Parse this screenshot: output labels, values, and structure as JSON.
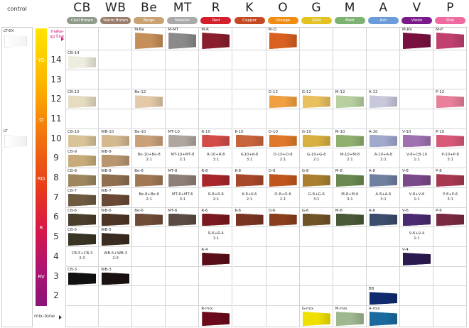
{
  "control": {
    "title": "control",
    "swatches": [
      {
        "label": "LT-EX",
        "color": "#f3f3f3"
      },
      {
        "label": "LT",
        "color": "#efefef"
      }
    ]
  },
  "level_bar": {
    "labels": [
      "YO",
      "O",
      "RO",
      "R",
      "RV"
    ]
  },
  "columns": [
    {
      "code": "CB",
      "name": "Cool Brown",
      "color": "#8f9c8c"
    },
    {
      "code": "WB",
      "name": "Warm Brown",
      "color": "#9b7d6c"
    },
    {
      "code": "Be",
      "name": "Beige",
      "color": "#c9a273"
    },
    {
      "code": "MT",
      "name": "Metallic",
      "color": "#a9a9a9"
    },
    {
      "code": "R",
      "name": "Red",
      "color": "#d3202c"
    },
    {
      "code": "K",
      "name": "Copper",
      "color": "#c34a22"
    },
    {
      "code": "O",
      "name": "Orange",
      "color": "#f08c12"
    },
    {
      "code": "G",
      "name": "Gold",
      "color": "#e3c322"
    },
    {
      "code": "M",
      "name": "Matt",
      "color": "#7cb272"
    },
    {
      "code": "A",
      "name": "Ash",
      "color": "#6b9bd8"
    },
    {
      "code": "V",
      "name": "Violet",
      "color": "#7a1a8a"
    },
    {
      "code": "P",
      "name": "Pink",
      "color": "#f06aa0"
    }
  ],
  "rows": [
    {
      "label": "make-up line",
      "cells": [
        null,
        null,
        {
          "label": "M-Be",
          "color": "#c68f5a"
        },
        {
          "label": "M-MT",
          "color": "#8a8a8a"
        },
        {
          "label": "M-R",
          "color": "#8a1e2e"
        },
        null,
        {
          "label": "M-O",
          "color": "#d86020"
        },
        null,
        null,
        null,
        {
          "label": "M-RV",
          "color": "#7a1040"
        },
        {
          "label": "M-P",
          "color": "#c04070"
        }
      ]
    },
    {
      "label": 14,
      "cells": [
        {
          "label": "CB-14",
          "color": "#eeeddf"
        },
        null,
        null,
        null,
        null,
        null,
        null,
        null,
        null,
        null,
        null,
        null
      ]
    },
    {
      "label": 13,
      "cells": [
        null,
        null,
        null,
        null,
        null,
        null,
        null,
        null,
        null,
        null,
        null,
        null
      ]
    },
    {
      "label": 12,
      "cells": [
        {
          "label": "CB-12",
          "color": "#e6ddc0"
        },
        null,
        {
          "label": "Be-12",
          "color": "#e3c9a8"
        },
        null,
        null,
        null,
        {
          "label": "O-12",
          "color": "#f0a040"
        },
        {
          "label": "G-12",
          "color": "#e8c060"
        },
        {
          "label": "M-12",
          "color": "#b8d0a0"
        },
        {
          "label": "A-12",
          "color": "#c8c8dc"
        },
        null,
        {
          "label": "P-12",
          "color": "#e8809a"
        }
      ]
    },
    {
      "label": 11,
      "cells": [
        null,
        null,
        null,
        null,
        null,
        null,
        null,
        null,
        null,
        null,
        null,
        null
      ]
    },
    {
      "label": 10,
      "cells": [
        {
          "label": "CB-10",
          "color": "#d9c49a"
        },
        {
          "label": "WB-10",
          "color": "#d4b88f"
        },
        {
          "label": "Be-10",
          "color": "#c9a07a"
        },
        {
          "label": "MT-10",
          "color": "#b0a6a0"
        },
        {
          "label": "R-10",
          "color": "#d24b48"
        },
        {
          "label": "K-10",
          "color": "#c8643c"
        },
        {
          "label": "O-10",
          "color": "#e0782a"
        },
        {
          "label": "G-10",
          "color": "#d8b040"
        },
        {
          "label": "M-10",
          "color": "#90b070"
        },
        {
          "label": "A-10",
          "color": "#a0a8cc"
        },
        {
          "label": "V-10",
          "color": "#a070b0"
        },
        {
          "label": "P-10",
          "color": "#d85878"
        }
      ]
    },
    {
      "label": 9,
      "cells": [
        {
          "label": "CB-9",
          "color": "#c8ab7a"
        },
        {
          "label": "WB-9",
          "color": "#b89670"
        },
        {
          "formula": "Be-10+Be-8",
          "ratio": "2:1"
        },
        {
          "formula": "MT-10+MT-8",
          "ratio": "2:1"
        },
        {
          "formula": "R-10+R-8",
          "ratio": "3:1"
        },
        {
          "formula": "K-10+K-8",
          "ratio": "3:1"
        },
        {
          "formula": "O-10+O-8",
          "ratio": "2:1"
        },
        {
          "formula": "G-10+G-8",
          "ratio": "2:1"
        },
        {
          "formula": "M-10+M-8",
          "ratio": "2:1"
        },
        {
          "formula": "A-10+A-8",
          "ratio": "2:1"
        },
        {
          "formula": "V-8+CB-10",
          "ratio": "1:1"
        },
        {
          "formula": "P-10+P-8",
          "ratio": "3:1"
        }
      ]
    },
    {
      "label": 8,
      "cells": [
        {
          "label": "CB-8",
          "color": "#9e8760"
        },
        {
          "label": "WB-8",
          "color": "#8f6f4f"
        },
        {
          "label": "Be-8",
          "color": "#a07856"
        },
        {
          "label": "MT-8",
          "color": "#8e8078"
        },
        {
          "label": "R-8",
          "color": "#a8262c"
        },
        {
          "label": "K-8",
          "color": "#a8482a"
        },
        {
          "label": "O-8",
          "color": "#c0561c"
        },
        {
          "label": "G-8",
          "color": "#a88030"
        },
        {
          "label": "M-8",
          "color": "#6a8850"
        },
        {
          "label": "A-8",
          "color": "#7080a0"
        },
        {
          "label": "V-8",
          "color": "#7a4a8a"
        },
        {
          "label": "P-8",
          "color": "#a83850"
        }
      ]
    },
    {
      "label": 7,
      "cells": [
        {
          "label": "CB-7",
          "color": "#6e5a40"
        },
        {
          "label": "WB-7",
          "color": "#6a4a36"
        },
        {
          "formula": "Be-8+Be-6",
          "ratio": "2:1"
        },
        {
          "formula": "MT-8+MT-6",
          "ratio": "3:1"
        },
        {
          "formula": "R-8+R-6",
          "ratio": "2:1"
        },
        {
          "formula": "K-8+K-6",
          "ratio": "2:1"
        },
        {
          "formula": "O-8+O-6",
          "ratio": "2:1"
        },
        {
          "formula": "G-8+G-6",
          "ratio": "3:1"
        },
        {
          "formula": "M-8+M-6",
          "ratio": "3:1"
        },
        {
          "formula": "A-8+A-6",
          "ratio": "3:1"
        },
        {
          "formula": "V-8+V-6",
          "ratio": "1:1"
        },
        {
          "formula": "P-8+P-6",
          "ratio": "3:1"
        }
      ]
    },
    {
      "label": 6,
      "cells": [
        {
          "label": "CB-6",
          "color": "#4a3e2c"
        },
        {
          "label": "WB-6",
          "color": "#4d3626"
        },
        {
          "label": "Be-6",
          "color": "#6e4c36"
        },
        {
          "label": "MT-6",
          "color": "#5a4c44"
        },
        {
          "label": "R-6",
          "color": "#7a1a20"
        },
        {
          "label": "K-6",
          "color": "#7a3422"
        },
        {
          "label": "O-6",
          "color": "#8a3e1e"
        },
        {
          "label": "G-6",
          "color": "#705428"
        },
        {
          "label": "M-6",
          "color": "#4a5a38"
        },
        {
          "label": "A-6",
          "color": "#3c4c6c"
        },
        {
          "label": "V-6",
          "color": "#4a2a70"
        },
        {
          "label": "P-6",
          "color": "#7a2a40"
        }
      ]
    },
    {
      "label": 5,
      "cells": [
        {
          "label": "CB-5",
          "color": "#3a3424"
        },
        {
          "label": "WB-5",
          "color": "#3a2c20"
        },
        null,
        null,
        {
          "formula": "R-6+R-4",
          "ratio": "1:1"
        },
        null,
        null,
        null,
        null,
        null,
        {
          "formula": "V-6+V-4",
          "ratio": "1:1"
        },
        null
      ]
    },
    {
      "label": 4,
      "cells": [
        {
          "formula": "CB-5+CB-3",
          "ratio": "2:3"
        },
        {
          "formula": "WB-5+WB-3",
          "ratio": "2:3"
        },
        null,
        null,
        {
          "label": "R-4",
          "color": "#5a0e18"
        },
        null,
        null,
        null,
        null,
        null,
        {
          "label": "V-4",
          "color": "#2a1a50"
        },
        null
      ]
    },
    {
      "label": 3,
      "cells": [
        {
          "label": "CB-3",
          "color": "#111111"
        },
        {
          "label": "WB-3",
          "color": "#1a1210"
        },
        null,
        null,
        null,
        null,
        null,
        null,
        null,
        null,
        null,
        null
      ]
    },
    {
      "label": 2,
      "cells": [
        null,
        null,
        null,
        null,
        null,
        null,
        null,
        null,
        null,
        {
          "label": "BB",
          "color": "#102a70"
        },
        null,
        null
      ]
    },
    {
      "label": "mix-tone",
      "cells": [
        null,
        null,
        null,
        null,
        {
          "label": "R-mix",
          "color": "#6a0a1a"
        },
        null,
        null,
        {
          "label": "G-mix",
          "color": "#f0e000"
        },
        {
          "label": "M-mix",
          "color": "#a0b890"
        },
        {
          "label": "A-mix",
          "color": "#1a6aa0"
        },
        null,
        null
      ]
    }
  ]
}
